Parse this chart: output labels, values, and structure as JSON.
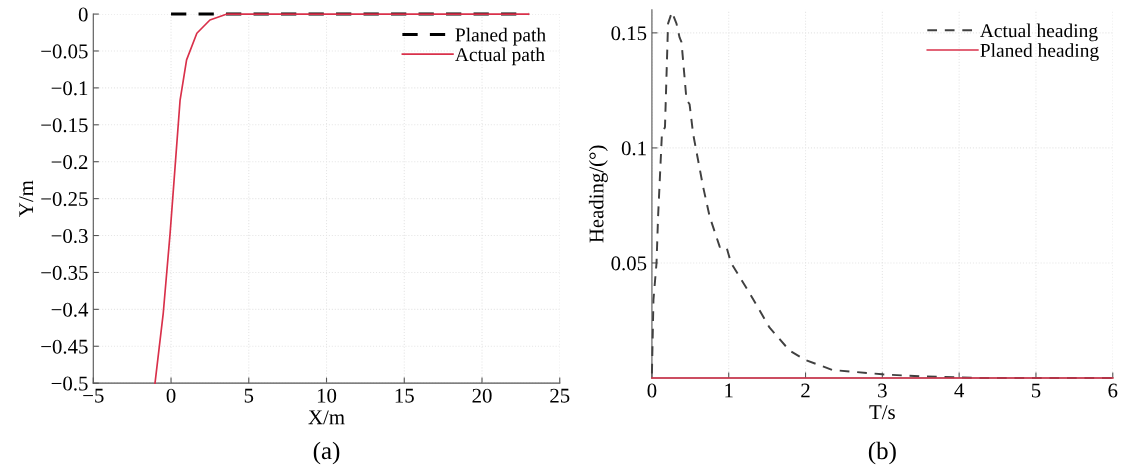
{
  "chart_data": [
    {
      "type": "line",
      "xlabel": "X/m",
      "ylabel": "Y/m",
      "xlim": [
        -5,
        25
      ],
      "ylim": [
        -0.5,
        0
      ],
      "xticks": [
        {
          "value": -5,
          "label": "−5"
        },
        0,
        5,
        10,
        15,
        20,
        25
      ],
      "yticks": [
        {
          "value": -0.5,
          "label": "−0.5"
        },
        {
          "value": -0.45,
          "label": "−0.45"
        },
        {
          "value": -0.4,
          "label": "−0.4"
        },
        {
          "value": -0.35,
          "label": "−0.35"
        },
        {
          "value": -0.3,
          "label": "−0.3"
        },
        {
          "value": -0.25,
          "label": "−0.25"
        },
        {
          "value": -0.2,
          "label": "−0.2"
        },
        {
          "value": -0.15,
          "label": "−0.15"
        },
        {
          "value": -0.1,
          "label": "−0.1"
        },
        {
          "value": -0.05,
          "label": "−0.05"
        },
        0
      ],
      "grid": true,
      "legend": "top right",
      "annotations": [
        "(a)"
      ],
      "series": [
        {
          "name": "Planed path",
          "color": "#000000",
          "line_style": "dashed",
          "x": [
            0,
            23
          ],
          "values": [
            0,
            0
          ]
        },
        {
          "name": "Actual path",
          "color": "#d9304a",
          "line_style": "solid",
          "x": [
            -1.03,
            -0.5,
            -0.06,
            0.26,
            0.58,
            1.0,
            1.66,
            2.5,
            3.6,
            23
          ],
          "values": [
            -0.5,
            -0.405,
            -0.297,
            -0.207,
            -0.117,
            -0.062,
            -0.026,
            -0.008,
            0,
            0
          ]
        }
      ]
    },
    {
      "type": "line",
      "xlabel": "T/s",
      "ylabel": "Heading/(°)",
      "xlim": [
        0,
        6
      ],
      "ylim": [
        0,
        0.16
      ],
      "xticks": [
        0,
        1,
        2,
        3,
        4,
        5,
        6
      ],
      "yticks": [
        0.05,
        0.1,
        0.15
      ],
      "grid": true,
      "legend": "top right",
      "annotations": [
        "(b)"
      ],
      "series": [
        {
          "name": "Actual heading",
          "color": "#404040",
          "line_style": "dashed",
          "x": [
            0,
            0.02,
            0.06,
            0.08,
            0.13,
            0.17,
            0.21,
            0.26,
            0.32,
            0.36,
            0.385,
            0.45,
            0.49,
            0.537,
            0.667,
            0.753,
            0.883,
            0.97,
            1.03,
            1.27,
            1.53,
            1.79,
            2.0,
            2.35,
            3.0,
            3.5,
            4.0,
            4.3,
            6
          ],
          "values": [
            0.002,
            0.034,
            0.05,
            0.07,
            0.106,
            0.109,
            0.154,
            0.159,
            0.154,
            0.148,
            0.146,
            0.121,
            0.119,
            0.106,
            0.083,
            0.07,
            0.057,
            0.057,
            0.05,
            0.037,
            0.022,
            0.012,
            0.0078,
            0.0035,
            0.0016,
            0.0007,
            0.0003,
            0,
            0
          ]
        },
        {
          "name": "Planed heading",
          "color": "#d9304a",
          "line_style": "solid",
          "x": [
            0,
            6
          ],
          "values": [
            0,
            0
          ]
        }
      ]
    }
  ]
}
